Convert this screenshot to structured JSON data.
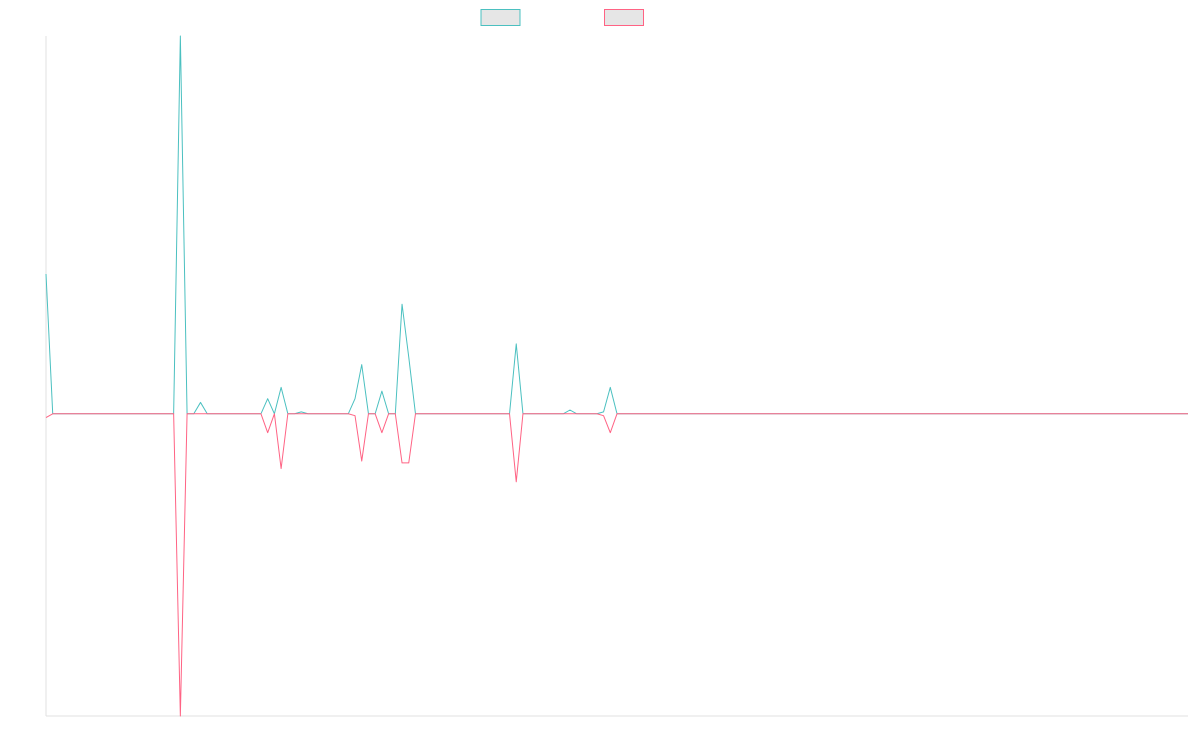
{
  "chart_data": {
    "type": "line",
    "x": [
      0,
      1,
      2,
      3,
      4,
      5,
      6,
      7,
      8,
      9,
      10,
      11,
      12,
      13,
      14,
      15,
      16,
      17,
      18,
      19,
      20,
      21,
      22,
      23,
      24,
      25,
      26,
      27,
      28,
      29,
      30,
      31,
      32,
      33,
      34,
      35,
      36,
      37,
      38,
      39,
      40,
      41,
      42,
      43,
      44,
      45,
      46,
      47,
      48,
      49,
      50,
      51,
      52,
      53,
      54,
      55,
      56,
      57,
      58,
      59,
      60,
      61,
      62,
      63,
      64,
      65,
      66,
      67,
      68,
      69,
      70,
      71,
      72,
      73,
      74,
      75,
      76,
      77,
      78,
      79,
      80,
      81,
      82,
      83,
      84,
      85,
      86,
      87,
      88,
      89,
      90,
      91,
      92,
      93,
      94,
      95,
      96,
      97,
      98,
      99,
      100,
      101,
      102,
      103,
      104,
      105,
      106,
      107,
      108,
      109,
      110,
      111,
      112,
      113,
      114,
      115,
      116,
      117,
      118,
      119,
      120,
      121,
      122,
      123,
      124,
      125,
      126,
      127,
      128,
      129,
      130,
      131,
      132,
      133,
      134,
      135,
      136,
      137,
      138,
      139,
      140,
      141,
      142,
      143,
      144,
      145,
      146,
      147,
      148,
      149,
      150,
      151,
      152,
      153,
      154,
      155,
      156,
      157,
      158,
      159,
      160,
      161,
      162,
      163,
      164,
      165,
      166,
      167,
      168,
      169,
      170
    ],
    "xlim": [
      0,
      170
    ],
    "ylim": [
      -8,
      10
    ],
    "series": [
      {
        "color": "#4bc0c0",
        "values": [
          3.7,
          0,
          0,
          0,
          0,
          0,
          0,
          0,
          0,
          0,
          0,
          0,
          0,
          0,
          0,
          0,
          0,
          0,
          0,
          0,
          10,
          0,
          0,
          0.3,
          0,
          0,
          0,
          0,
          0,
          0,
          0,
          0,
          0,
          0.4,
          0,
          0.7,
          0,
          0,
          0.05,
          0,
          0,
          0,
          0,
          0,
          0,
          0,
          0.4,
          1.3,
          0,
          0,
          0.6,
          0,
          0,
          2.9,
          1.5,
          0,
          0,
          0,
          0,
          0,
          0,
          0,
          0,
          0,
          0,
          0,
          0,
          0,
          0,
          0,
          1.85,
          0,
          0,
          0,
          0,
          0,
          0,
          0,
          0.1,
          0,
          0,
          0,
          0,
          0.05,
          0.7,
          0,
          0,
          0,
          0,
          0,
          0,
          0,
          0,
          0,
          0,
          0,
          0,
          0,
          0,
          0,
          0,
          0,
          0,
          0,
          0,
          0,
          0,
          0,
          0,
          0,
          0,
          0,
          0,
          0,
          0,
          0,
          0,
          0,
          0,
          0,
          0,
          0,
          0,
          0,
          0,
          0,
          0,
          0,
          0,
          0,
          0,
          0,
          0,
          0,
          0,
          0,
          0,
          0,
          0,
          0,
          0,
          0,
          0,
          0,
          0,
          0,
          0,
          0,
          0,
          0,
          0,
          0,
          0,
          0,
          0,
          0,
          0,
          0,
          0,
          0,
          0,
          0,
          0,
          0,
          0,
          0,
          0,
          0,
          0,
          0,
          0
        ]
      },
      {
        "color": "#ff6384",
        "values": [
          -0.1,
          0,
          0,
          0,
          0,
          0,
          0,
          0,
          0,
          0,
          0,
          0,
          0,
          0,
          0,
          0,
          0,
          0,
          0,
          0,
          -8,
          0,
          0,
          0,
          0,
          0,
          0,
          0,
          0,
          0,
          0,
          0,
          0,
          -0.5,
          0,
          -1.45,
          0,
          0,
          0,
          0,
          0,
          0,
          0,
          0,
          0,
          0,
          -0.05,
          -1.25,
          0,
          0,
          -0.5,
          0,
          0,
          -1.3,
          -1.3,
          0,
          0,
          0,
          0,
          0,
          0,
          0,
          0,
          0,
          0,
          0,
          0,
          0,
          0,
          0,
          -1.8,
          0,
          0,
          0,
          0,
          0,
          0,
          0,
          0,
          0,
          0,
          0,
          0,
          -0.05,
          -0.5,
          0,
          0,
          0,
          0,
          0,
          0,
          0,
          0,
          0,
          0,
          0,
          0,
          0,
          0,
          0,
          0,
          0,
          0,
          0,
          0,
          0,
          0,
          0,
          0,
          0,
          0,
          0,
          0,
          0,
          0,
          0,
          0,
          0,
          0,
          0,
          0,
          0,
          0,
          0,
          0,
          0,
          0,
          0,
          0,
          0,
          0,
          0,
          0,
          0,
          0,
          0,
          0,
          0,
          0,
          0,
          0,
          0,
          0,
          0,
          0,
          0,
          0,
          0,
          0,
          0,
          0,
          0,
          0,
          0,
          0,
          0,
          0,
          0,
          0,
          0,
          0,
          0,
          0,
          0,
          0,
          0,
          0,
          0,
          0,
          0,
          0
        ]
      }
    ]
  }
}
